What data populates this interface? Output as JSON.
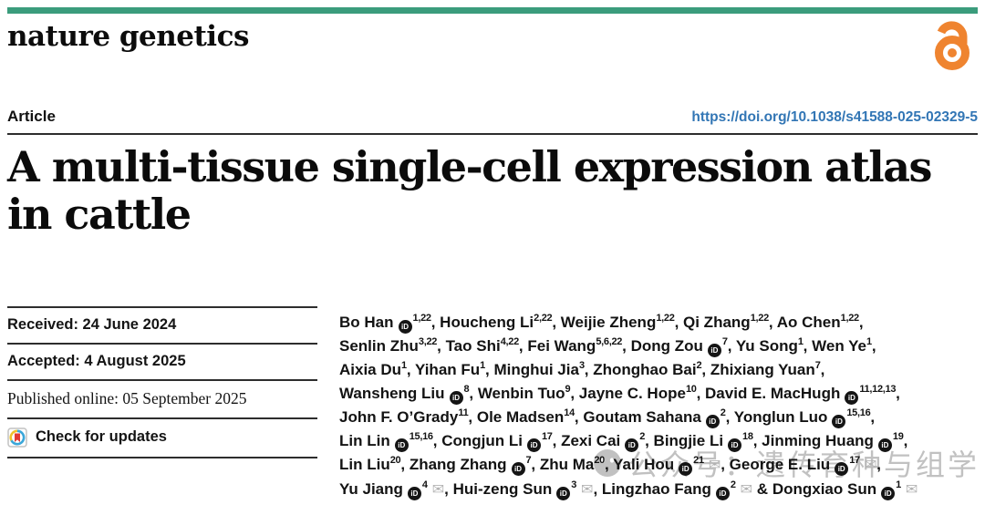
{
  "masthead": {
    "journal": "nature genetics",
    "brand_bar_color": "#3b9c7c",
    "open_access_color": "#ef8430"
  },
  "article_header": {
    "type_label": "Article",
    "doi": "https://doi.org/10.1038/s41588-025-02329-5",
    "doi_color": "#3276b5",
    "title_lines": [
      "A multi-tissue single-cell expression atlas",
      "in cattle"
    ]
  },
  "timeline": {
    "received": "Received: 24 June 2024",
    "accepted": "Accepted: 4 August 2025",
    "published": "Published online: 05 September 2025",
    "check_updates": "Check for updates"
  },
  "authors": [
    {
      "name": "Bo Han",
      "orcid": true,
      "sups": "1,22",
      "suffix": ", "
    },
    {
      "name": "Houcheng Li",
      "sups": "2,22",
      "suffix": ", "
    },
    {
      "name": "Weijie Zheng",
      "sups": "1,22",
      "suffix": ", "
    },
    {
      "name": "Qi Zhang",
      "sups": "1,22",
      "suffix": ", "
    },
    {
      "name": "Ao Chen",
      "sups": "1,22",
      "suffix": ",",
      "br": true
    },
    {
      "name": "Senlin Zhu",
      "sups": "3,22",
      "suffix": ", "
    },
    {
      "name": "Tao Shi",
      "sups": "4,22",
      "suffix": ", "
    },
    {
      "name": "Fei Wang",
      "sups": "5,6,22",
      "suffix": ", "
    },
    {
      "name": "Dong Zou",
      "orcid": true,
      "sups": "7",
      "suffix": ", "
    },
    {
      "name": "Yu Song",
      "sups": "1",
      "suffix": ", "
    },
    {
      "name": "Wen Ye",
      "sups": "1",
      "suffix": ",",
      "br": true
    },
    {
      "name": "Aixia Du",
      "sups": "1",
      "suffix": ", "
    },
    {
      "name": "Yihan Fu",
      "sups": "1",
      "suffix": ", "
    },
    {
      "name": "Minghui Jia",
      "sups": "3",
      "suffix": ", "
    },
    {
      "name": "Zhonghao Bai",
      "sups": "2",
      "suffix": ", "
    },
    {
      "name": "Zhixiang Yuan",
      "sups": "7",
      "suffix": ",",
      "br": true
    },
    {
      "name": "Wansheng Liu",
      "orcid": true,
      "sups": "8",
      "suffix": ", "
    },
    {
      "name": "Wenbin Tuo",
      "sups": "9",
      "suffix": ", "
    },
    {
      "name": "Jayne C. Hope",
      "sups": "10",
      "suffix": ", "
    },
    {
      "name": "David E. MacHugh",
      "orcid": true,
      "sups": "11,12,13",
      "suffix": ",",
      "br": true
    },
    {
      "name": "John F. O’Grady",
      "sups": "11",
      "suffix": ", "
    },
    {
      "name": "Ole Madsen",
      "sups": "14",
      "suffix": ", "
    },
    {
      "name": "Goutam Sahana",
      "orcid": true,
      "sups": "2",
      "suffix": ", "
    },
    {
      "name": "Yonglun Luo",
      "orcid": true,
      "sups": "15,16",
      "suffix": ",",
      "br": true
    },
    {
      "name": "Lin Lin",
      "orcid": true,
      "sups": "15,16",
      "suffix": ", "
    },
    {
      "name": "Congjun Li",
      "orcid": true,
      "sups": "17",
      "suffix": ", "
    },
    {
      "name": "Zexi Cai",
      "orcid": true,
      "sups": "2",
      "suffix": ", "
    },
    {
      "name": "Bingjie Li",
      "orcid": true,
      "sups": "18",
      "suffix": ", "
    },
    {
      "name": "Jinming Huang",
      "orcid": true,
      "sups": "19",
      "suffix": ",",
      "br": true
    },
    {
      "name": "Lin Liu",
      "sups": "20",
      "suffix": ", "
    },
    {
      "name": "Zhang Zhang",
      "orcid": true,
      "sups": "7",
      "suffix": ", "
    },
    {
      "name": "Zhu Ma",
      "sups": "20",
      "suffix": ", "
    },
    {
      "name": "Yali Hou",
      "orcid": true,
      "sups": "21",
      "email": true,
      "suffix": ", "
    },
    {
      "name": "George E. Liu",
      "orcid": true,
      "sups": "17",
      "email": true,
      "suffix": ",",
      "br": true
    },
    {
      "name": "Yu Jiang",
      "orcid": true,
      "sups": "4",
      "email": true,
      "suffix": ", "
    },
    {
      "name": "Hui-zeng Sun",
      "orcid": true,
      "sups": "3",
      "email": true,
      "suffix": ", "
    },
    {
      "name": "Lingzhao Fang",
      "orcid": true,
      "sups": "2",
      "email": true,
      "suffix": " & "
    },
    {
      "name": "Dongxiao Sun",
      "orcid": true,
      "sups": "1",
      "email": true,
      "suffix": ""
    }
  ],
  "watermark": {
    "text": "公众号：遗传育种与组学",
    "color": "#8f8f8f",
    "icon": "wechat-icon"
  }
}
